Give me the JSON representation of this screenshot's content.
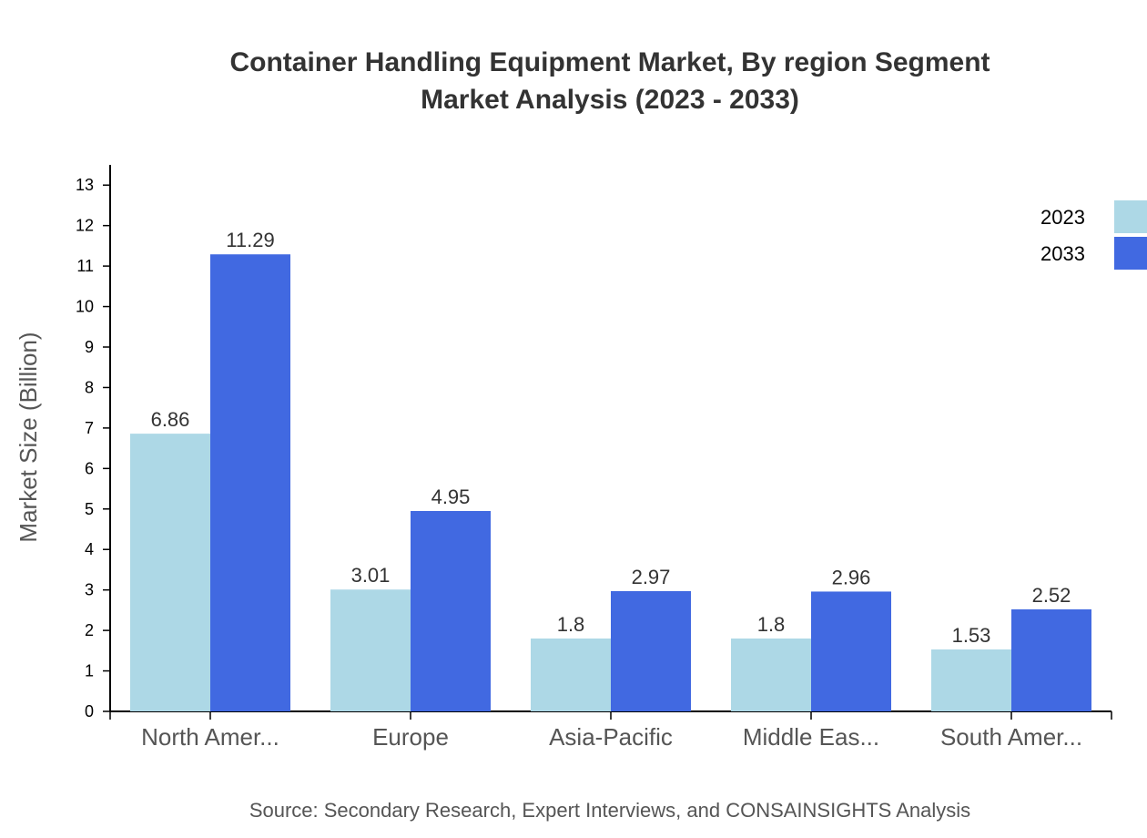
{
  "chart_data": {
    "type": "bar",
    "title_lines": [
      "Container Handling Equipment Market, By region Segment",
      "Market Analysis (2023 - 2033)"
    ],
    "ylabel": "Market Size (Billion)",
    "xlabel": "",
    "categories": [
      "North Amer...",
      "Europe",
      "Asia-Pacific",
      "Middle Eas...",
      "South Amer..."
    ],
    "series": [
      {
        "name": "2023",
        "values": [
          6.86,
          3.01,
          1.8,
          1.8,
          1.53
        ],
        "color": "#add8e6"
      },
      {
        "name": "2033",
        "values": [
          11.29,
          4.95,
          2.97,
          2.96,
          2.52
        ],
        "color": "#4169e1"
      }
    ],
    "ylim": [
      0,
      13.5
    ],
    "yticks": [
      0,
      1,
      2,
      3,
      4,
      5,
      6,
      7,
      8,
      9,
      10,
      11,
      12,
      13
    ],
    "grid": false,
    "legend_position": "top-right",
    "data_labels": true
  },
  "source": "Source: Secondary Research, Expert Interviews, and CONSAINSIGHTS Analysis"
}
